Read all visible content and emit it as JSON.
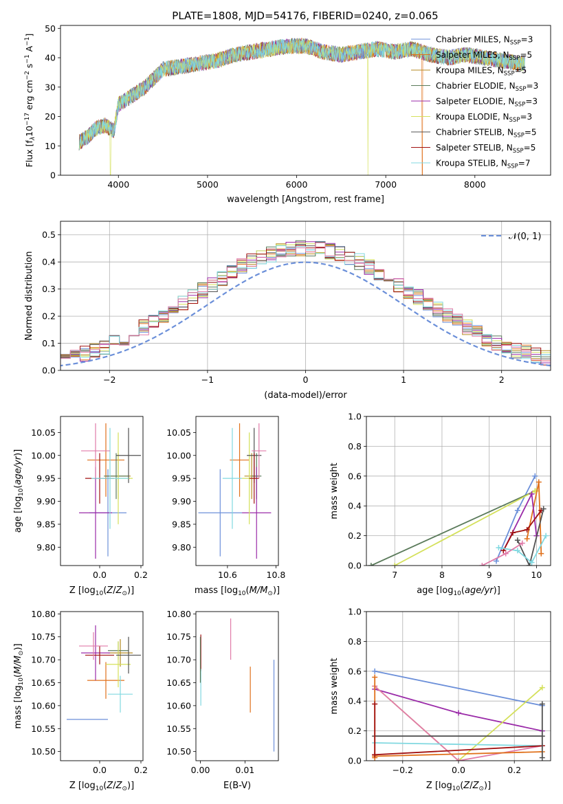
{
  "figure_title": "PLATE=1808, MJD=54176, FIBERID=0240, z=0.065",
  "colors": {
    "chabrier_miles": "#6b8fd9",
    "salpeter_miles": "#e0701a",
    "kroupa_miles": "#b58a20",
    "chabrier_elodie": "#5a7a5a",
    "salpeter_elodie": "#9a2aa8",
    "kroupa_elodie": "#d4e05a",
    "chabrier_stelib": "#505050",
    "salpeter_stelib": "#a01010",
    "kroupa_stelib": "#80d8e0",
    "pink": "#e07aa8",
    "green2": "#6aa060"
  },
  "chart_data": [
    {
      "id": "spectrum",
      "type": "line",
      "title": "PLATE=1808, MJD=54176, FIBERID=0240, z=0.065",
      "xlabel": "wavelength [Angstrom, rest frame]",
      "ylabel": "Flux [f",
      "ylabel_parts": [
        "Flux [f",
        "λ",
        "10",
        "−17",
        " erg cm",
        "−2",
        " s",
        "−1",
        " A",
        "−1",
        "]"
      ],
      "xlim": [
        3350,
        8850
      ],
      "ylim": [
        0,
        51
      ],
      "xticks": [
        4000,
        5000,
        6000,
        7000,
        8000
      ],
      "yticks": [
        0,
        10,
        20,
        30,
        40,
        50
      ],
      "legend_placement": "upper right",
      "series": [
        {
          "name": "Chabrier MILES, N",
          "sub": "SSP",
          "suffix": "=3",
          "color_key": "chabrier_miles"
        },
        {
          "name": "Salpeter MILES, N",
          "sub": "SSP",
          "suffix": "=5",
          "color_key": "salpeter_miles"
        },
        {
          "name": "Kroupa MILES, N",
          "sub": "SSP",
          "suffix": "=5",
          "color_key": "kroupa_miles"
        },
        {
          "name": "Chabrier ELODIE, N",
          "sub": "SSP",
          "suffix": "=3",
          "color_key": "chabrier_elodie"
        },
        {
          "name": "Salpeter ELODIE, N",
          "sub": "SSP",
          "suffix": "=3",
          "color_key": "salpeter_elodie"
        },
        {
          "name": "Kroupa ELODIE, N",
          "sub": "SSP",
          "suffix": "=3",
          "color_key": "kroupa_elodie"
        },
        {
          "name": "Chabrier STELIB, N",
          "sub": "SSP",
          "suffix": "=5",
          "color_key": "chabrier_stelib"
        },
        {
          "name": "Salpeter STELIB, N",
          "sub": "SSP",
          "suffix": "=5",
          "color_key": "salpeter_stelib"
        },
        {
          "name": "Kroupa STELIB, N",
          "sub": "SSP",
          "suffix": "=7",
          "color_key": "kroupa_stelib"
        }
      ],
      "continuum": [
        [
          3550,
          11
        ],
        [
          3650,
          13
        ],
        [
          3750,
          16
        ],
        [
          3850,
          17
        ],
        [
          3950,
          15
        ],
        [
          4000,
          24
        ],
        [
          4100,
          26
        ],
        [
          4200,
          28
        ],
        [
          4300,
          30
        ],
        [
          4400,
          33
        ],
        [
          4500,
          36
        ],
        [
          4700,
          37
        ],
        [
          4900,
          38
        ],
        [
          5100,
          39
        ],
        [
          5300,
          41
        ],
        [
          5500,
          42
        ],
        [
          5700,
          43
        ],
        [
          5900,
          44
        ],
        [
          6100,
          44
        ],
        [
          6300,
          42
        ],
        [
          6500,
          41
        ],
        [
          6700,
          42
        ],
        [
          6900,
          43
        ],
        [
          7100,
          42
        ],
        [
          7300,
          43
        ],
        [
          7500,
          41
        ],
        [
          7700,
          40
        ],
        [
          7900,
          41
        ],
        [
          8100,
          40
        ],
        [
          8300,
          39
        ],
        [
          8500,
          38
        ]
      ],
      "drops": [
        [
          3910,
          "kroupa_elodie"
        ],
        [
          6800,
          "kroupa_elodie"
        ],
        [
          7410,
          "salpeter_miles"
        ]
      ]
    },
    {
      "id": "residuals",
      "type": "histogram",
      "xlabel": "(data-model)/error",
      "ylabel": "Normed distribution",
      "xlim": [
        -2.5,
        2.5
      ],
      "ylim": [
        0,
        0.55
      ],
      "xticks": [
        -2,
        -1,
        0,
        1,
        2
      ],
      "xtick_labels": [
        "−2",
        "−1",
        "0",
        "1",
        "2"
      ],
      "yticks": [
        0.0,
        0.1,
        0.2,
        0.3,
        0.4,
        0.5
      ],
      "ytick_labels": [
        "0.0",
        "0.1",
        "0.2",
        "0.3",
        "0.4",
        "0.5"
      ],
      "legend": "𝒩(0, 1)",
      "grid": true,
      "bin_width": 0.1
    },
    {
      "id": "age_vs_Z",
      "type": "scatter",
      "xlabel": "Z [log",
      "ylabel": "age  [log",
      "xlim": [
        -0.19,
        0.21
      ],
      "ylim": [
        9.76,
        10.085
      ],
      "xticks": [
        0.0,
        0.2
      ],
      "xtick_labels": [
        "0.0",
        "0.2"
      ],
      "yticks": [
        9.8,
        9.85,
        9.9,
        9.95,
        10.0,
        10.05
      ],
      "ytick_labels": [
        "9.80",
        "9.85",
        "9.90",
        "9.95",
        "10.00",
        "10.05"
      ],
      "points": [
        {
          "x": 0.04,
          "y": 9.875,
          "xerr": 0.09,
          "yerr": 0.095,
          "color_key": "chabrier_miles"
        },
        {
          "x": 0.03,
          "y": 9.99,
          "xerr": 0.09,
          "yerr": 0.08,
          "color_key": "salpeter_miles"
        },
        {
          "x": 0.09,
          "y": 9.955,
          "xerr": 0.06,
          "yerr": 0.05,
          "color_key": "kroupa_miles"
        },
        {
          "x": 0.08,
          "y": 9.955,
          "xerr": 0.06,
          "yerr": 0.05,
          "color_key": "chabrier_elodie"
        },
        {
          "x": -0.02,
          "y": 9.875,
          "xerr": 0.08,
          "yerr": 0.1,
          "color_key": "salpeter_elodie"
        },
        {
          "x": 0.09,
          "y": 9.95,
          "xerr": 0.07,
          "yerr": 0.1,
          "color_key": "kroupa_elodie"
        },
        {
          "x": 0.14,
          "y": 10.0,
          "xerr": 0.06,
          "yerr": 0.06,
          "color_key": "chabrier_stelib"
        },
        {
          "x": 0.0,
          "y": 9.95,
          "xerr": 0.07,
          "yerr": 0.055,
          "color_key": "salpeter_stelib"
        },
        {
          "x": 0.05,
          "y": 9.95,
          "xerr": 0.09,
          "yerr": 0.11,
          "color_key": "kroupa_stelib"
        },
        {
          "x": -0.02,
          "y": 10.01,
          "xerr": 0.07,
          "yerr": 0.06,
          "color_key": "pink"
        }
      ]
    },
    {
      "id": "age_vs_mass",
      "type": "scatter",
      "xlabel": "mass [log",
      "xlim": [
        10.47,
        10.81
      ],
      "ylim": [
        9.76,
        10.085
      ],
      "xticks": [
        10.6,
        10.8
      ],
      "xtick_labels": [
        "10.6",
        "10.8"
      ],
      "yticks": [
        9.8,
        9.85,
        9.9,
        9.95,
        10.0,
        10.05
      ],
      "ytick_labels": [
        "9.80",
        "9.85",
        "9.90",
        "9.95",
        "10.00",
        "10.05"
      ],
      "points": [
        {
          "x": 10.57,
          "y": 9.875,
          "xerr": 0.09,
          "yerr": 0.095,
          "color_key": "chabrier_miles"
        },
        {
          "x": 10.65,
          "y": 9.99,
          "xerr": 0.04,
          "yerr": 0.08,
          "color_key": "salpeter_miles"
        },
        {
          "x": 10.7,
          "y": 9.955,
          "xerr": 0.03,
          "yerr": 0.05,
          "color_key": "kroupa_miles"
        },
        {
          "x": 10.72,
          "y": 9.955,
          "xerr": 0.02,
          "yerr": 0.05,
          "color_key": "chabrier_elodie"
        },
        {
          "x": 10.72,
          "y": 9.875,
          "xerr": 0.06,
          "yerr": 0.1,
          "color_key": "salpeter_elodie"
        },
        {
          "x": 10.69,
          "y": 9.95,
          "xerr": 0.03,
          "yerr": 0.1,
          "color_key": "kroupa_elodie"
        },
        {
          "x": 10.71,
          "y": 10.0,
          "xerr": 0.03,
          "yerr": 0.06,
          "color_key": "chabrier_stelib"
        },
        {
          "x": 10.71,
          "y": 9.95,
          "xerr": 0.02,
          "yerr": 0.055,
          "color_key": "salpeter_stelib"
        },
        {
          "x": 10.62,
          "y": 9.95,
          "xerr": 0.04,
          "yerr": 0.11,
          "color_key": "kroupa_stelib"
        },
        {
          "x": 10.73,
          "y": 10.01,
          "xerr": 0.03,
          "yerr": 0.06,
          "color_key": "pink"
        }
      ]
    },
    {
      "id": "weight_vs_age",
      "type": "line",
      "xlabel": "age  [log",
      "ylabel": "mass weight",
      "xlim": [
        6.4,
        10.3
      ],
      "ylim": [
        0,
        1.0
      ],
      "xticks": [
        7,
        8,
        9,
        10
      ],
      "yticks": [
        0.0,
        0.2,
        0.4,
        0.6,
        0.8,
        1.0
      ],
      "ytick_labels": [
        "0.0",
        "0.2",
        "0.4",
        "0.6",
        "0.8",
        "1.0"
      ],
      "grid": true,
      "series": [
        {
          "color_key": "chabrier_miles",
          "x": [
            9.15,
            9.6,
            9.97
          ],
          "y": [
            0.03,
            0.37,
            0.6
          ]
        },
        {
          "color_key": "chabrier_elodie",
          "x": [
            6.5,
            9.97
          ],
          "y": [
            0.0,
            0.5
          ]
        },
        {
          "color_key": "kroupa_elodie",
          "x": [
            7.0,
            9.97,
            10.0
          ],
          "y": [
            0.0,
            0.5,
            0.5
          ]
        },
        {
          "color_key": "salpeter_miles",
          "x": [
            9.8,
            10.05,
            10.1
          ],
          "y": [
            0.18,
            0.56,
            0.08
          ]
        },
        {
          "color_key": "salpeter_elodie",
          "x": [
            9.3,
            9.9,
            10.0
          ],
          "y": [
            0.1,
            0.48,
            0.2
          ]
        },
        {
          "color_key": "salpeter_stelib",
          "x": [
            9.3,
            9.5,
            9.8,
            10.1
          ],
          "y": [
            0.1,
            0.22,
            0.24,
            0.37
          ]
        },
        {
          "color_key": "chabrier_stelib",
          "x": [
            9.6,
            9.85,
            10.15
          ],
          "y": [
            0.17,
            0.0,
            0.38
          ]
        },
        {
          "color_key": "kroupa_stelib",
          "x": [
            9.2,
            9.6,
            9.9,
            10.2
          ],
          "y": [
            0.12,
            0.1,
            0.02,
            0.2
          ]
        },
        {
          "color_key": "pink",
          "x": [
            8.85,
            9.35,
            9.7
          ],
          "y": [
            0.0,
            0.08,
            0.15
          ]
        }
      ]
    },
    {
      "id": "mass_vs_Z",
      "type": "scatter",
      "xlabel": "Z [log",
      "ylabel": "mass [log",
      "xlim": [
        -0.19,
        0.21
      ],
      "ylim": [
        10.48,
        10.805
      ],
      "xticks": [
        0.0,
        0.2
      ],
      "xtick_labels": [
        "0.0",
        "0.2"
      ],
      "yticks": [
        10.5,
        10.55,
        10.6,
        10.65,
        10.7,
        10.75,
        10.8
      ],
      "ytick_labels": [
        "10.50",
        "10.55",
        "10.60",
        "10.65",
        "10.70",
        "10.75",
        "10.80"
      ],
      "points": [
        {
          "x": -0.06,
          "y": 10.57,
          "xerr": 0.1,
          "yerr": 0.0,
          "color_key": "chabrier_miles"
        },
        {
          "x": 0.03,
          "y": 10.655,
          "xerr": 0.09,
          "yerr": 0.04,
          "color_key": "salpeter_miles"
        },
        {
          "x": 0.1,
          "y": 10.715,
          "xerr": 0.06,
          "yerr": 0.03,
          "color_key": "kroupa_miles"
        },
        {
          "x": 0.09,
          "y": 10.72,
          "xerr": 0.05,
          "yerr": 0.02,
          "color_key": "chabrier_elodie"
        },
        {
          "x": -0.02,
          "y": 10.715,
          "xerr": 0.07,
          "yerr": 0.06,
          "color_key": "salpeter_elodie"
        },
        {
          "x": 0.09,
          "y": 10.69,
          "xerr": 0.06,
          "yerr": 0.05,
          "color_key": "kroupa_elodie"
        },
        {
          "x": 0.14,
          "y": 10.71,
          "xerr": 0.06,
          "yerr": 0.04,
          "color_key": "chabrier_stelib"
        },
        {
          "x": 0.0,
          "y": 10.71,
          "xerr": 0.07,
          "yerr": 0.02,
          "color_key": "salpeter_stelib"
        },
        {
          "x": 0.1,
          "y": 10.625,
          "xerr": 0.06,
          "yerr": 0.04,
          "color_key": "kroupa_stelib"
        },
        {
          "x": -0.03,
          "y": 10.73,
          "xerr": 0.07,
          "yerr": 0.03,
          "color_key": "pink"
        }
      ]
    },
    {
      "id": "mass_vs_ebv",
      "type": "scatter",
      "xlabel": "E(B-V)",
      "xlim": [
        -0.001,
        0.0175
      ],
      "ylim": [
        10.48,
        10.805
      ],
      "xticks": [
        0.0,
        0.01
      ],
      "xtick_labels": [
        "0.00",
        "0.01"
      ],
      "yticks": [
        10.5,
        10.55,
        10.6,
        10.65,
        10.7,
        10.75,
        10.8
      ],
      "ytick_labels": [
        "10.50",
        "10.55",
        "10.60",
        "10.65",
        "10.70",
        "10.75",
        "10.80"
      ],
      "points": [
        {
          "x": 0.0165,
          "y": 10.6,
          "xerr": 0.0,
          "yerr": 0.1,
          "color_key": "chabrier_miles"
        },
        {
          "x": 0.0112,
          "y": 10.635,
          "xerr": 0.0,
          "yerr": 0.05,
          "color_key": "salpeter_miles"
        },
        {
          "x": 0.0001,
          "y": 10.715,
          "xerr": 0.0,
          "yerr": 0.04,
          "color_key": "salpeter_stelib"
        },
        {
          "x": 0.0001,
          "y": 10.64,
          "xerr": 0.0,
          "yerr": 0.04,
          "color_key": "kroupa_stelib"
        },
        {
          "x": 0.0068,
          "y": 10.745,
          "xerr": 0.0,
          "yerr": 0.045,
          "color_key": "pink"
        },
        {
          "x": 0.0,
          "y": 10.7,
          "xerr": 0.0,
          "yerr": 0.05,
          "color_key": "chabrier_elodie"
        }
      ]
    },
    {
      "id": "weight_vs_Z",
      "type": "line",
      "xlabel": "Z [log",
      "ylabel": "mass weight",
      "xlim": [
        -0.33,
        0.33
      ],
      "ylim": [
        0,
        1.0
      ],
      "xticks": [
        -0.2,
        0.0,
        0.2
      ],
      "xtick_labels": [
        "−0.2",
        "0.0",
        "0.2"
      ],
      "yticks": [
        0.0,
        0.2,
        0.4,
        0.6,
        0.8,
        1.0
      ],
      "ytick_labels": [
        "0.0",
        "0.2",
        "0.4",
        "0.6",
        "0.8",
        "1.0"
      ],
      "grid": true,
      "series": [
        {
          "color_key": "chabrier_miles",
          "x": [
            -0.3,
            0.3
          ],
          "y": [
            0.6,
            0.37
          ]
        },
        {
          "color_key": "salpeter_elodie",
          "x": [
            -0.3,
            0.0,
            0.3
          ],
          "y": [
            0.48,
            0.32,
            0.2
          ]
        },
        {
          "color_key": "kroupa_elodie",
          "x": [
            -0.3,
            0.0,
            0.3
          ],
          "y": [
            0.5,
            0.0,
            0.49
          ]
        },
        {
          "color_key": "pink",
          "x": [
            -0.3,
            0.0,
            0.3
          ],
          "y": [
            0.5,
            0.0,
            0.1
          ]
        },
        {
          "color_key": "chabrier_stelib",
          "x": [
            -0.3,
            0.3
          ],
          "y": [
            0.165,
            0.165
          ]
        },
        {
          "color_key": "kroupa_stelib",
          "x": [
            -0.3,
            0.3
          ],
          "y": [
            0.12,
            0.1
          ]
        },
        {
          "color_key": "salpeter_stelib",
          "x": [
            -0.3,
            0.3
          ],
          "y": [
            0.04,
            0.1
          ]
        },
        {
          "color_key": "salpeter_miles",
          "x": [
            -0.3,
            0.3
          ],
          "y": [
            0.03,
            0.06
          ]
        },
        {
          "color_key": "chabrier_stelib",
          "x": [
            0.3,
            0.3
          ],
          "y": [
            0.02,
            0.38
          ]
        },
        {
          "color_key": "salpeter_miles",
          "x": [
            -0.3,
            -0.3
          ],
          "y": [
            0.02,
            0.56
          ]
        },
        {
          "color_key": "salpeter_stelib",
          "x": [
            -0.3,
            -0.3
          ],
          "y": [
            0.04,
            0.38
          ]
        }
      ]
    }
  ]
}
